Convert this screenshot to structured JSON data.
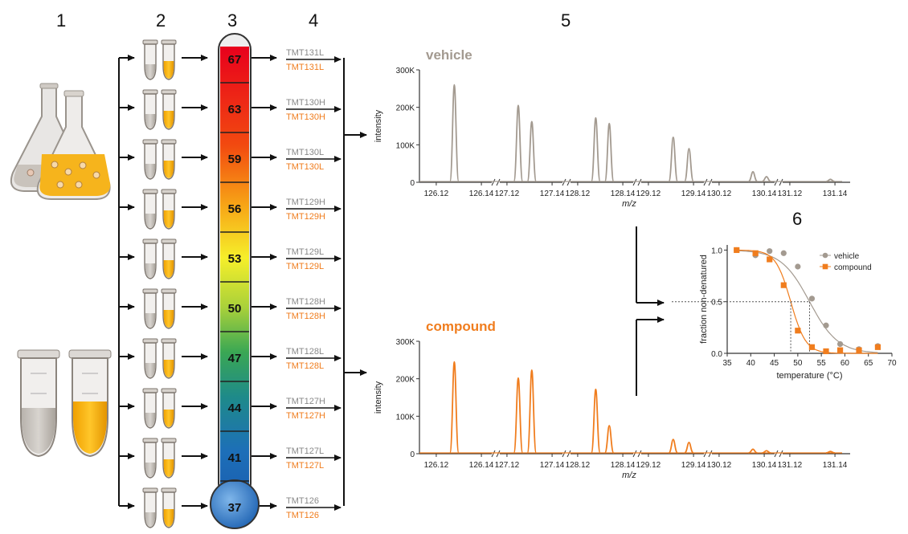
{
  "steps": [
    "1",
    "2",
    "3",
    "4",
    "5",
    "6"
  ],
  "temperatures": [
    "67",
    "63",
    "59",
    "56",
    "53",
    "50",
    "47",
    "44",
    "41",
    "37"
  ],
  "tmt_labels": [
    "TMT131L",
    "TMT130H",
    "TMT130L",
    "TMT129H",
    "TMT129L",
    "TMT128H",
    "TMT128L",
    "TMT127H",
    "TMT127L",
    "TMT126"
  ],
  "colors": {
    "vehicle": "#a39a90",
    "compound": "#f07d1e",
    "axis": "#333333"
  },
  "spectra": {
    "x_ticks": [
      "126.12",
      "126.14",
      "127.12",
      "127.14",
      "128.12",
      "128.14",
      "129.12",
      "129.14",
      "130.12",
      "130.14",
      "131.12",
      "131.14"
    ],
    "y_ticks": [
      "300K",
      "200K",
      "100K",
      "0"
    ],
    "ylabel": "intensity",
    "xlabel": "m/z",
    "vehicle": {
      "title": "vehicle",
      "peaks": [
        {
          "label": "TMT126",
          "x": 126.128,
          "y": 260000
        },
        {
          "label": "TMT127L",
          "x": 127.125,
          "y": 205000
        },
        {
          "label": "TMT127H",
          "x": 127.131,
          "y": 162000
        },
        {
          "label": "TMT128L",
          "x": 128.128,
          "y": 172000
        },
        {
          "label": "TMT128H",
          "x": 128.134,
          "y": 157000
        },
        {
          "label": "TMT129L",
          "x": 129.131,
          "y": 120000
        },
        {
          "label": "TMT129H",
          "x": 129.138,
          "y": 90000
        },
        {
          "label": "TMT130L",
          "x": 130.135,
          "y": 28000
        },
        {
          "label": "TMT130H",
          "x": 130.141,
          "y": 15000
        },
        {
          "label": "TMT131L",
          "x": 131.138,
          "y": 8000
        }
      ]
    },
    "compound": {
      "title": "compound",
      "peaks": [
        {
          "label": "TMT126",
          "x": 126.128,
          "y": 245000
        },
        {
          "label": "TMT127L",
          "x": 127.125,
          "y": 202000
        },
        {
          "label": "TMT127H",
          "x": 127.131,
          "y": 223000
        },
        {
          "label": "TMT128L",
          "x": 128.128,
          "y": 172000
        },
        {
          "label": "TMT128H",
          "x": 128.134,
          "y": 75000
        },
        {
          "label": "TMT129L",
          "x": 129.131,
          "y": 38000
        },
        {
          "label": "TMT129H",
          "x": 129.138,
          "y": 30000
        },
        {
          "label": "TMT130L",
          "x": 130.135,
          "y": 12000
        },
        {
          "label": "TMT130H",
          "x": 130.141,
          "y": 8000
        },
        {
          "label": "TMT131L",
          "x": 131.138,
          "y": 6000
        }
      ]
    }
  },
  "melt_curve": {
    "x_ticks": [
      "35",
      "40",
      "45",
      "50",
      "55",
      "60",
      "65",
      "70"
    ],
    "y_ticks": [
      "1.0",
      "0.5",
      "0.0"
    ],
    "xlabel": "temperature (°C)",
    "ylabel": "fraction non-denatured",
    "xlim": [
      35,
      70
    ],
    "ylim": [
      0,
      1.05
    ],
    "series": [
      {
        "name": "vehicle",
        "color": "#a39a90",
        "tm": 52.5,
        "slope": 3.0,
        "x": [
          37,
          41,
          44,
          47,
          50,
          53,
          56,
          59,
          63,
          67
        ],
        "y": [
          1.0,
          0.95,
          0.99,
          0.97,
          0.84,
          0.53,
          0.27,
          0.09,
          0.04,
          0.07
        ]
      },
      {
        "name": "compound",
        "color": "#f07d1e",
        "tm": 48.5,
        "slope": 1.6,
        "x": [
          37,
          41,
          44,
          47,
          50,
          53,
          56,
          59,
          63,
          67
        ],
        "y": [
          1.0,
          0.97,
          0.91,
          0.66,
          0.22,
          0.06,
          0.02,
          0.03,
          0.03,
          0.06
        ]
      }
    ]
  }
}
